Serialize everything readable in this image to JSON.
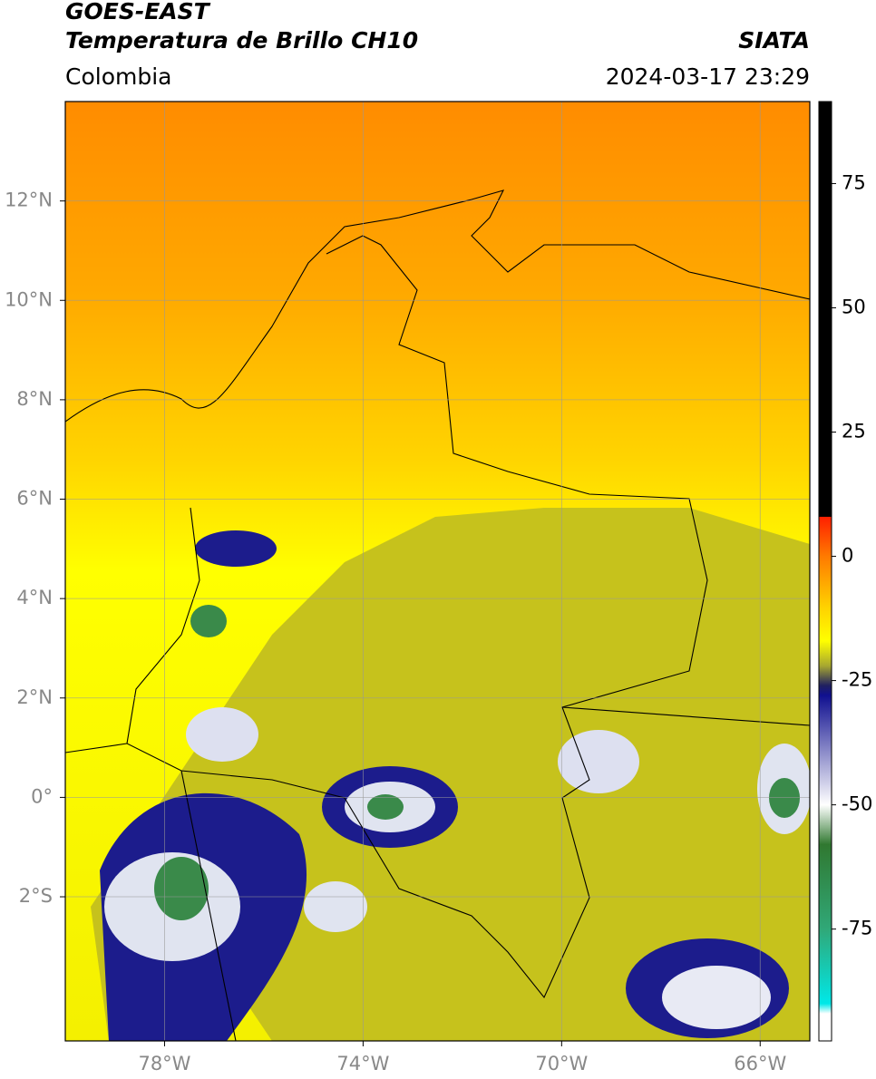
{
  "header": {
    "title": "GOES-EAST",
    "subtitle": "Temperatura de Brillo CH10",
    "region": "Colombia",
    "source": "SIATA",
    "datetime": "2024-03-17 23:29"
  },
  "map": {
    "lon_lim": [
      -80,
      -65
    ],
    "lat_lim": [
      -4.9,
      14
    ],
    "lon_ticks": [
      {
        "value": -78,
        "label": "78°W"
      },
      {
        "value": -74,
        "label": "74°W"
      },
      {
        "value": -70,
        "label": "70°W"
      },
      {
        "value": -66,
        "label": "66°W"
      }
    ],
    "lat_ticks": [
      {
        "value": 12,
        "label": "12°N"
      },
      {
        "value": 10,
        "label": "10°N"
      },
      {
        "value": 8,
        "label": "8°N"
      },
      {
        "value": 6,
        "label": "6°N"
      },
      {
        "value": 4,
        "label": "4°N"
      },
      {
        "value": 2,
        "label": "2°N"
      },
      {
        "value": 0,
        "label": "0°"
      },
      {
        "value": -2,
        "label": "2°S"
      }
    ]
  },
  "colorbar": {
    "lim": [
      -97.5,
      91.5
    ],
    "ticks": [
      75,
      50,
      25,
      0,
      -25,
      -50,
      -75
    ],
    "stops": [
      {
        "value": 91.5,
        "color": "#000000"
      },
      {
        "value": 8,
        "color": "#000000"
      },
      {
        "value": 7.9,
        "color": "#ff2000"
      },
      {
        "value": 0,
        "color": "#ff7a00"
      },
      {
        "value": -10,
        "color": "#ffd000"
      },
      {
        "value": -17,
        "color": "#ffff00"
      },
      {
        "value": -22,
        "color": "#a8a830"
      },
      {
        "value": -26,
        "color": "#202060"
      },
      {
        "value": -28,
        "color": "#101090"
      },
      {
        "value": -50,
        "color": "#ffffff"
      },
      {
        "value": -58,
        "color": "#307830"
      },
      {
        "value": -75,
        "color": "#30a878"
      },
      {
        "value": -90,
        "color": "#00e8e8"
      },
      {
        "value": -92,
        "color": "#ffffff"
      },
      {
        "value": -97.5,
        "color": "#ffffff"
      }
    ]
  }
}
